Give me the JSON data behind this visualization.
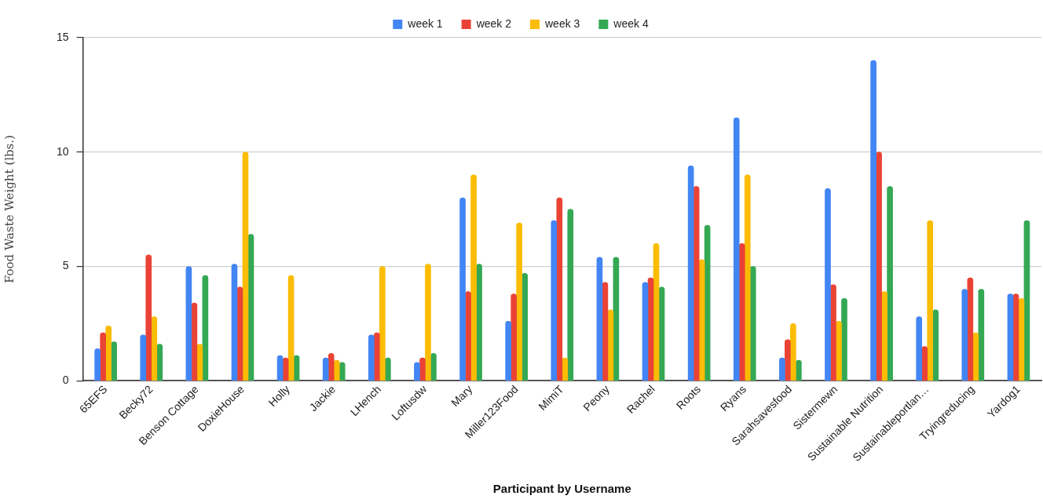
{
  "chart_data": {
    "type": "bar",
    "xlabel": "Participant by Username",
    "ylabel": "Food Waste Weight (lbs.)",
    "categories": [
      "65EFS",
      "Becky72",
      "Benson Cottage",
      "DoxieHouse",
      "Holly",
      "Jackie",
      "LHench",
      "Loftusdw",
      "Mary",
      "Miller123Food",
      "MimiT",
      "Peony",
      "Rachel",
      "Roots",
      "Ryans",
      "Sarahsavesfood",
      "Sistermewn",
      "Sustainable Nutrition",
      "Sustainableportlan…",
      "Tryingreducing",
      "Yardog1"
    ],
    "series": [
      {
        "name": "week 1",
        "color": "#4285f4",
        "values": [
          1.4,
          2.0,
          5.0,
          5.1,
          1.1,
          1.0,
          2.0,
          0.8,
          8.0,
          2.6,
          7.0,
          5.4,
          4.3,
          9.4,
          11.5,
          1.0,
          8.4,
          14.0,
          2.8,
          4.0,
          3.8
        ]
      },
      {
        "name": "week 2",
        "color": "#ea4335",
        "values": [
          2.1,
          5.5,
          3.4,
          4.1,
          1.0,
          1.2,
          2.1,
          1.0,
          3.9,
          3.8,
          8.0,
          4.3,
          4.5,
          8.5,
          6.0,
          1.8,
          4.2,
          10.0,
          1.5,
          4.5,
          3.8
        ]
      },
      {
        "name": "week 3",
        "color": "#fbbc04",
        "values": [
          2.4,
          2.8,
          1.6,
          10.0,
          4.6,
          0.9,
          5.0,
          5.1,
          9.0,
          6.9,
          1.0,
          3.1,
          6.0,
          5.3,
          9.0,
          2.5,
          2.6,
          3.9,
          7.0,
          2.1,
          3.6
        ]
      },
      {
        "name": "week 4",
        "color": "#34a853",
        "values": [
          1.7,
          1.6,
          4.6,
          6.4,
          1.1,
          0.8,
          1.0,
          1.2,
          5.1,
          4.7,
          7.5,
          5.4,
          4.1,
          6.8,
          5.0,
          0.9,
          3.6,
          8.5,
          3.1,
          4.0,
          7.0
        ]
      }
    ],
    "ylim": [
      0,
      15
    ],
    "yticks": [
      0,
      5,
      10,
      15
    ],
    "grid": "y",
    "legend": "top"
  }
}
